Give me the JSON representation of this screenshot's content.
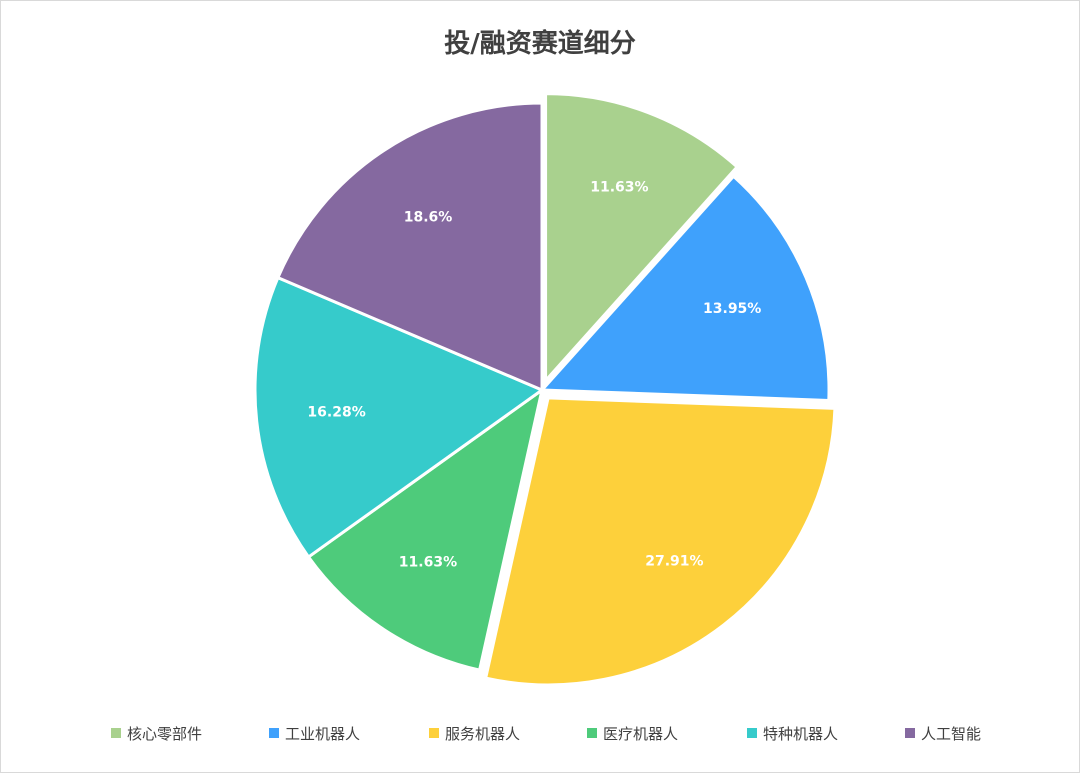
{
  "chart_data": {
    "type": "pie",
    "title": "投/融资赛道细分",
    "legend_position": "bottom",
    "slices": [
      {
        "name": "核心零部件",
        "value": 11.63,
        "label": "11.63%",
        "color": "#a9d18e",
        "exploded": true
      },
      {
        "name": "工业机器人",
        "value": 13.95,
        "label": "13.95%",
        "color": "#3fa1fc",
        "exploded": false
      },
      {
        "name": "服务机器人",
        "value": 27.91,
        "label": "27.91%",
        "color": "#fdd03b",
        "exploded": true
      },
      {
        "name": "医疗机器人",
        "value": 11.63,
        "label": "11.63%",
        "color": "#4ecb7b",
        "exploded": false
      },
      {
        "name": "特种机器人",
        "value": 16.28,
        "label": "16.28%",
        "color": "#36cbcb",
        "exploded": false
      },
      {
        "name": "人工智能",
        "value": 18.6,
        "label": "18.6%",
        "color": "#8569a0",
        "exploded": false
      }
    ]
  }
}
